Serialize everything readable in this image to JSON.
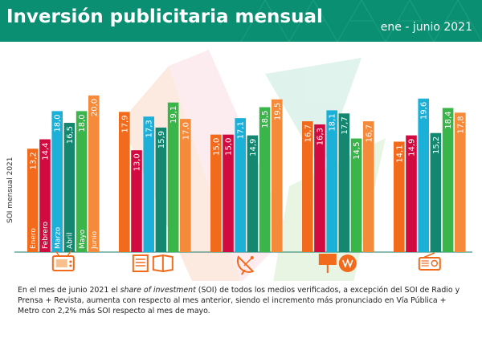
{
  "header": {
    "title": "Inversión publicitaria mensual",
    "subtitle": "ene - junio 2021"
  },
  "colors": {
    "header_bg": "#0a8f72",
    "Enero": "#f26a1b",
    "Febrero": "#d10a3f",
    "Marzo": "#1ab0d8",
    "Abril": "#15866f",
    "Mayo": "#3ab54a",
    "Junio": "#f58a3b"
  },
  "icons": [
    "tv-icon",
    "press-magazine-icon",
    "satellite-dish-icon",
    "billboard-metro-icon",
    "radio-icon"
  ],
  "chart_data": {
    "type": "bar",
    "ylabel": "SOI mensual 2021",
    "ylim": [
      0,
      20.5
    ],
    "legend_placement": "inside-first-group",
    "months": [
      "Enero",
      "Febrero",
      "Marzo",
      "Abril",
      "Mayo",
      "Junio"
    ],
    "groups": [
      {
        "icon": "tv-icon",
        "values": [
          13.2,
          14.4,
          18.0,
          16.5,
          18.0,
          20.0
        ],
        "labels": [
          "13,2",
          "14,4",
          "18,0",
          "16,5",
          "18,0",
          "20,0"
        ]
      },
      {
        "icon": "press-magazine-icon",
        "values": [
          17.9,
          13.0,
          17.3,
          15.9,
          19.1,
          17.0
        ],
        "labels": [
          "17,9",
          "13,0",
          "17,3",
          "15,9",
          "19,1",
          "17,0"
        ]
      },
      {
        "icon": "satellite-dish-icon",
        "values": [
          15.0,
          15.0,
          17.1,
          14.9,
          18.5,
          19.5
        ],
        "labels": [
          "15,0",
          "15,0",
          "17,1",
          "14,9",
          "18,5",
          "19,5"
        ]
      },
      {
        "icon": "billboard-metro-icon",
        "values": [
          16.7,
          16.3,
          18.1,
          17.7,
          14.5,
          16.7
        ],
        "labels": [
          "16,7",
          "16,3",
          "18,1",
          "17,7",
          "14,5",
          "16,7"
        ]
      },
      {
        "icon": "radio-icon",
        "values": [
          14.1,
          14.9,
          19.6,
          15.2,
          18.4,
          17.8
        ],
        "labels": [
          "14,1",
          "14,9",
          "19,6",
          "15,2",
          "18,4",
          "17,8"
        ]
      }
    ]
  },
  "note": {
    "part1": "En el mes de junio 2021 el ",
    "part2": "share of investment",
    "part3": " (SOI) de todos los medios verificados, a excepción del SOI de  Radio y Prensa + Revista, aumenta con respecto al mes anterior, siendo el incremento más pronunciado en Vía Pública + Metro con 2,2% más SOI respecto al mes de mayo."
  }
}
